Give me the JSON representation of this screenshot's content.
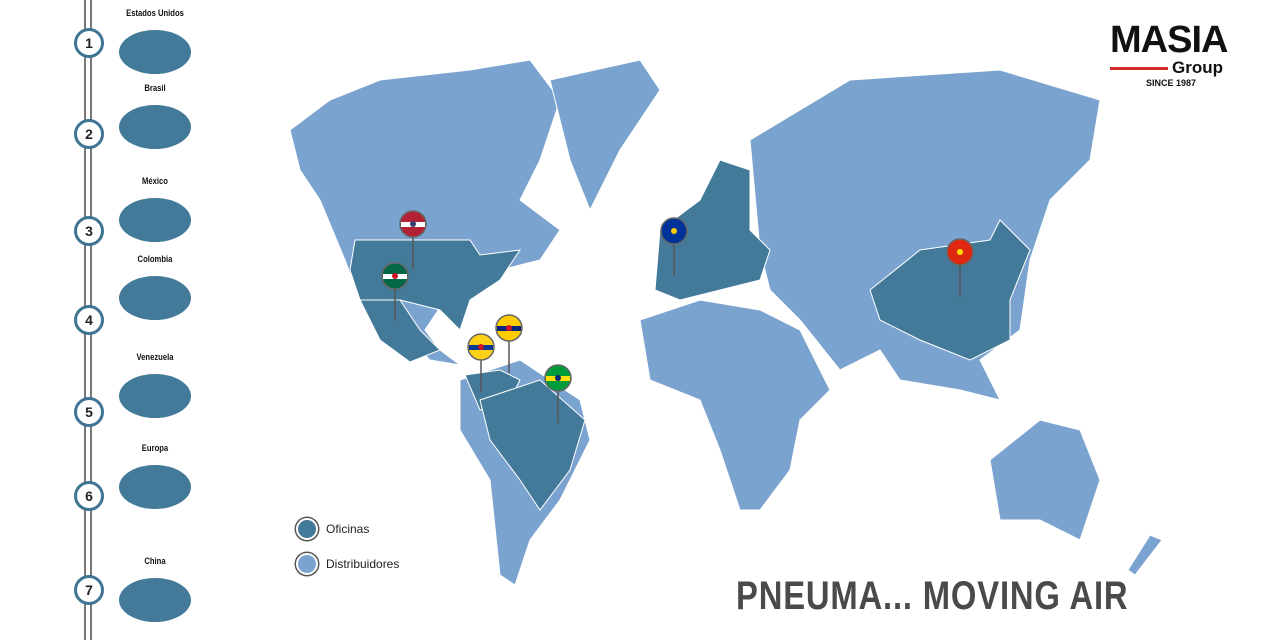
{
  "colors": {
    "offices": "#437a99",
    "distributors": "#7ba3cf",
    "rail": "#777777"
  },
  "sidebar": {
    "items": [
      {
        "number": "1",
        "label": "Estados Unidos"
      },
      {
        "number": "2",
        "label": "Brasil"
      },
      {
        "number": "3",
        "label": "México"
      },
      {
        "number": "4",
        "label": "Colombia"
      },
      {
        "number": "5",
        "label": "Venezuela"
      },
      {
        "number": "6",
        "label": "Europa"
      },
      {
        "number": "7",
        "label": "China"
      }
    ]
  },
  "legend": {
    "offices": "Oficinas",
    "distributors": "Distribuidores"
  },
  "pins": [
    {
      "flag": "usa-flag-icon"
    },
    {
      "flag": "mexico-flag-icon"
    },
    {
      "flag": "venezuela-flag-icon"
    },
    {
      "flag": "colombia-flag-icon"
    },
    {
      "flag": "brazil-flag-icon"
    },
    {
      "flag": "eu-flag-icon"
    },
    {
      "flag": "china-flag-icon"
    }
  ],
  "logo": {
    "name": "MASIA",
    "group": "Group",
    "since": "SINCE 1987"
  },
  "slogan": "PNEUMA... MOVING AIR"
}
